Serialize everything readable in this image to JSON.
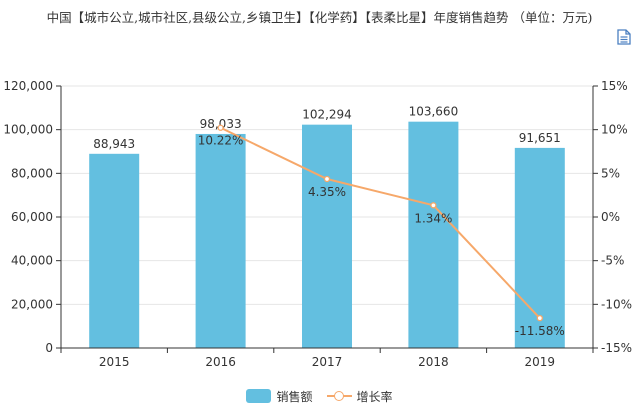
{
  "title": "中国【城市公立,城市社区,县级公立,乡镇卫生】【化学药】【表柔比星】年度销售趋势 （单位：万元)",
  "toolbar": {
    "icon": "data-view-icon"
  },
  "colors": {
    "bar": "#63bfe0",
    "line": "#f6a86a",
    "axis": "#333333",
    "grid": "#e6e6e6",
    "text": "#333333"
  },
  "chart_data": {
    "type": "bar",
    "categories": [
      "2015",
      "2016",
      "2017",
      "2018",
      "2019"
    ],
    "series": [
      {
        "name": "销售额",
        "type": "bar",
        "axis": "left",
        "values": [
          88943,
          98033,
          102294,
          103660,
          91651
        ],
        "labels": [
          "88,943",
          "98,033",
          "102,294",
          "103,660",
          "91,651"
        ]
      },
      {
        "name": "增长率",
        "type": "line",
        "axis": "right",
        "x": [
          "2016",
          "2017",
          "2018",
          "2019"
        ],
        "values": [
          10.22,
          4.35,
          1.34,
          -11.58
        ],
        "labels": [
          "10.22%",
          "4.35%",
          "1.34%",
          "-11.58%"
        ]
      }
    ],
    "y_left": {
      "min": 0,
      "max": 120000,
      "ticks": [
        "0",
        "20,000",
        "40,000",
        "60,000",
        "80,000",
        "100,000",
        "120,000"
      ],
      "tick_values": [
        0,
        20000,
        40000,
        60000,
        80000,
        100000,
        120000
      ]
    },
    "y_right": {
      "min": -15,
      "max": 15,
      "ticks": [
        "-15%",
        "-10%",
        "-5%",
        "0%",
        "5%",
        "10%",
        "15%"
      ],
      "tick_values": [
        -15,
        -10,
        -5,
        0,
        5,
        10,
        15
      ]
    },
    "grid": true,
    "legend_position": "bottom"
  }
}
